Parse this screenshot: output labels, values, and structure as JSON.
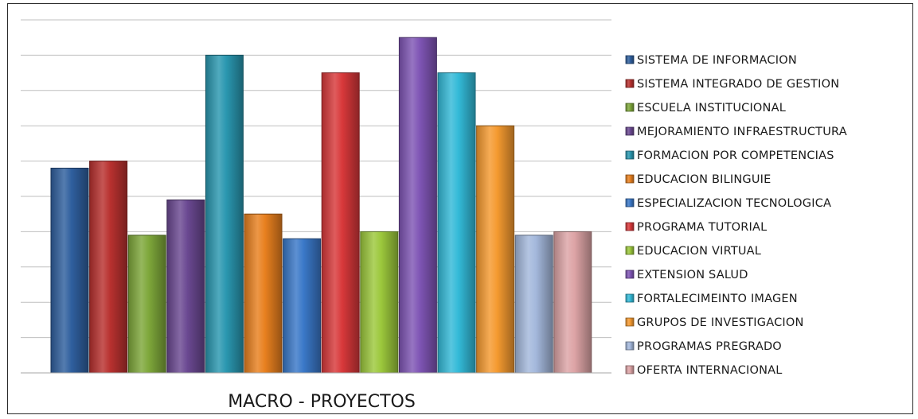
{
  "chart_data": {
    "type": "bar",
    "xlabel": "MACRO - PROYECTOS",
    "ylim": [
      0,
      10
    ],
    "grid": true,
    "legend_position": "right",
    "categories": [
      "SISTEMA DE INFORMACION",
      "SISTEMA INTEGRADO DE GESTION",
      "ESCUELA INSTITUCIONAL",
      "MEJORAMIENTO INFRAESTRUCTURA",
      "FORMACION POR COMPETENCIAS",
      "EDUCACION BILINGUIE",
      "ESPECIALIZACION TECNOLOGICA",
      "PROGRAMA TUTORIAL",
      "EDUCACION VIRTUAL",
      "EXTENSION SALUD",
      "FORTALECIMEINTO IMAGEN",
      "GRUPOS DE INVESTIGACION",
      "PROGRAMAS PREGRADO",
      "OFERTA INTERNACIONAL"
    ],
    "values": [
      5.8,
      6.0,
      3.9,
      4.9,
      9.0,
      4.5,
      3.8,
      8.5,
      4.0,
      9.5,
      8.5,
      7.0,
      3.9,
      4.0
    ],
    "colors": [
      "#2f5f9e",
      "#b8312f",
      "#7ea73a",
      "#6a4891",
      "#2a97b0",
      "#e8801f",
      "#3a78c8",
      "#d8383a",
      "#9cc83c",
      "#7f55b5",
      "#33bad8",
      "#f59a30",
      "#a4b8dc",
      "#dda4a6"
    ]
  }
}
